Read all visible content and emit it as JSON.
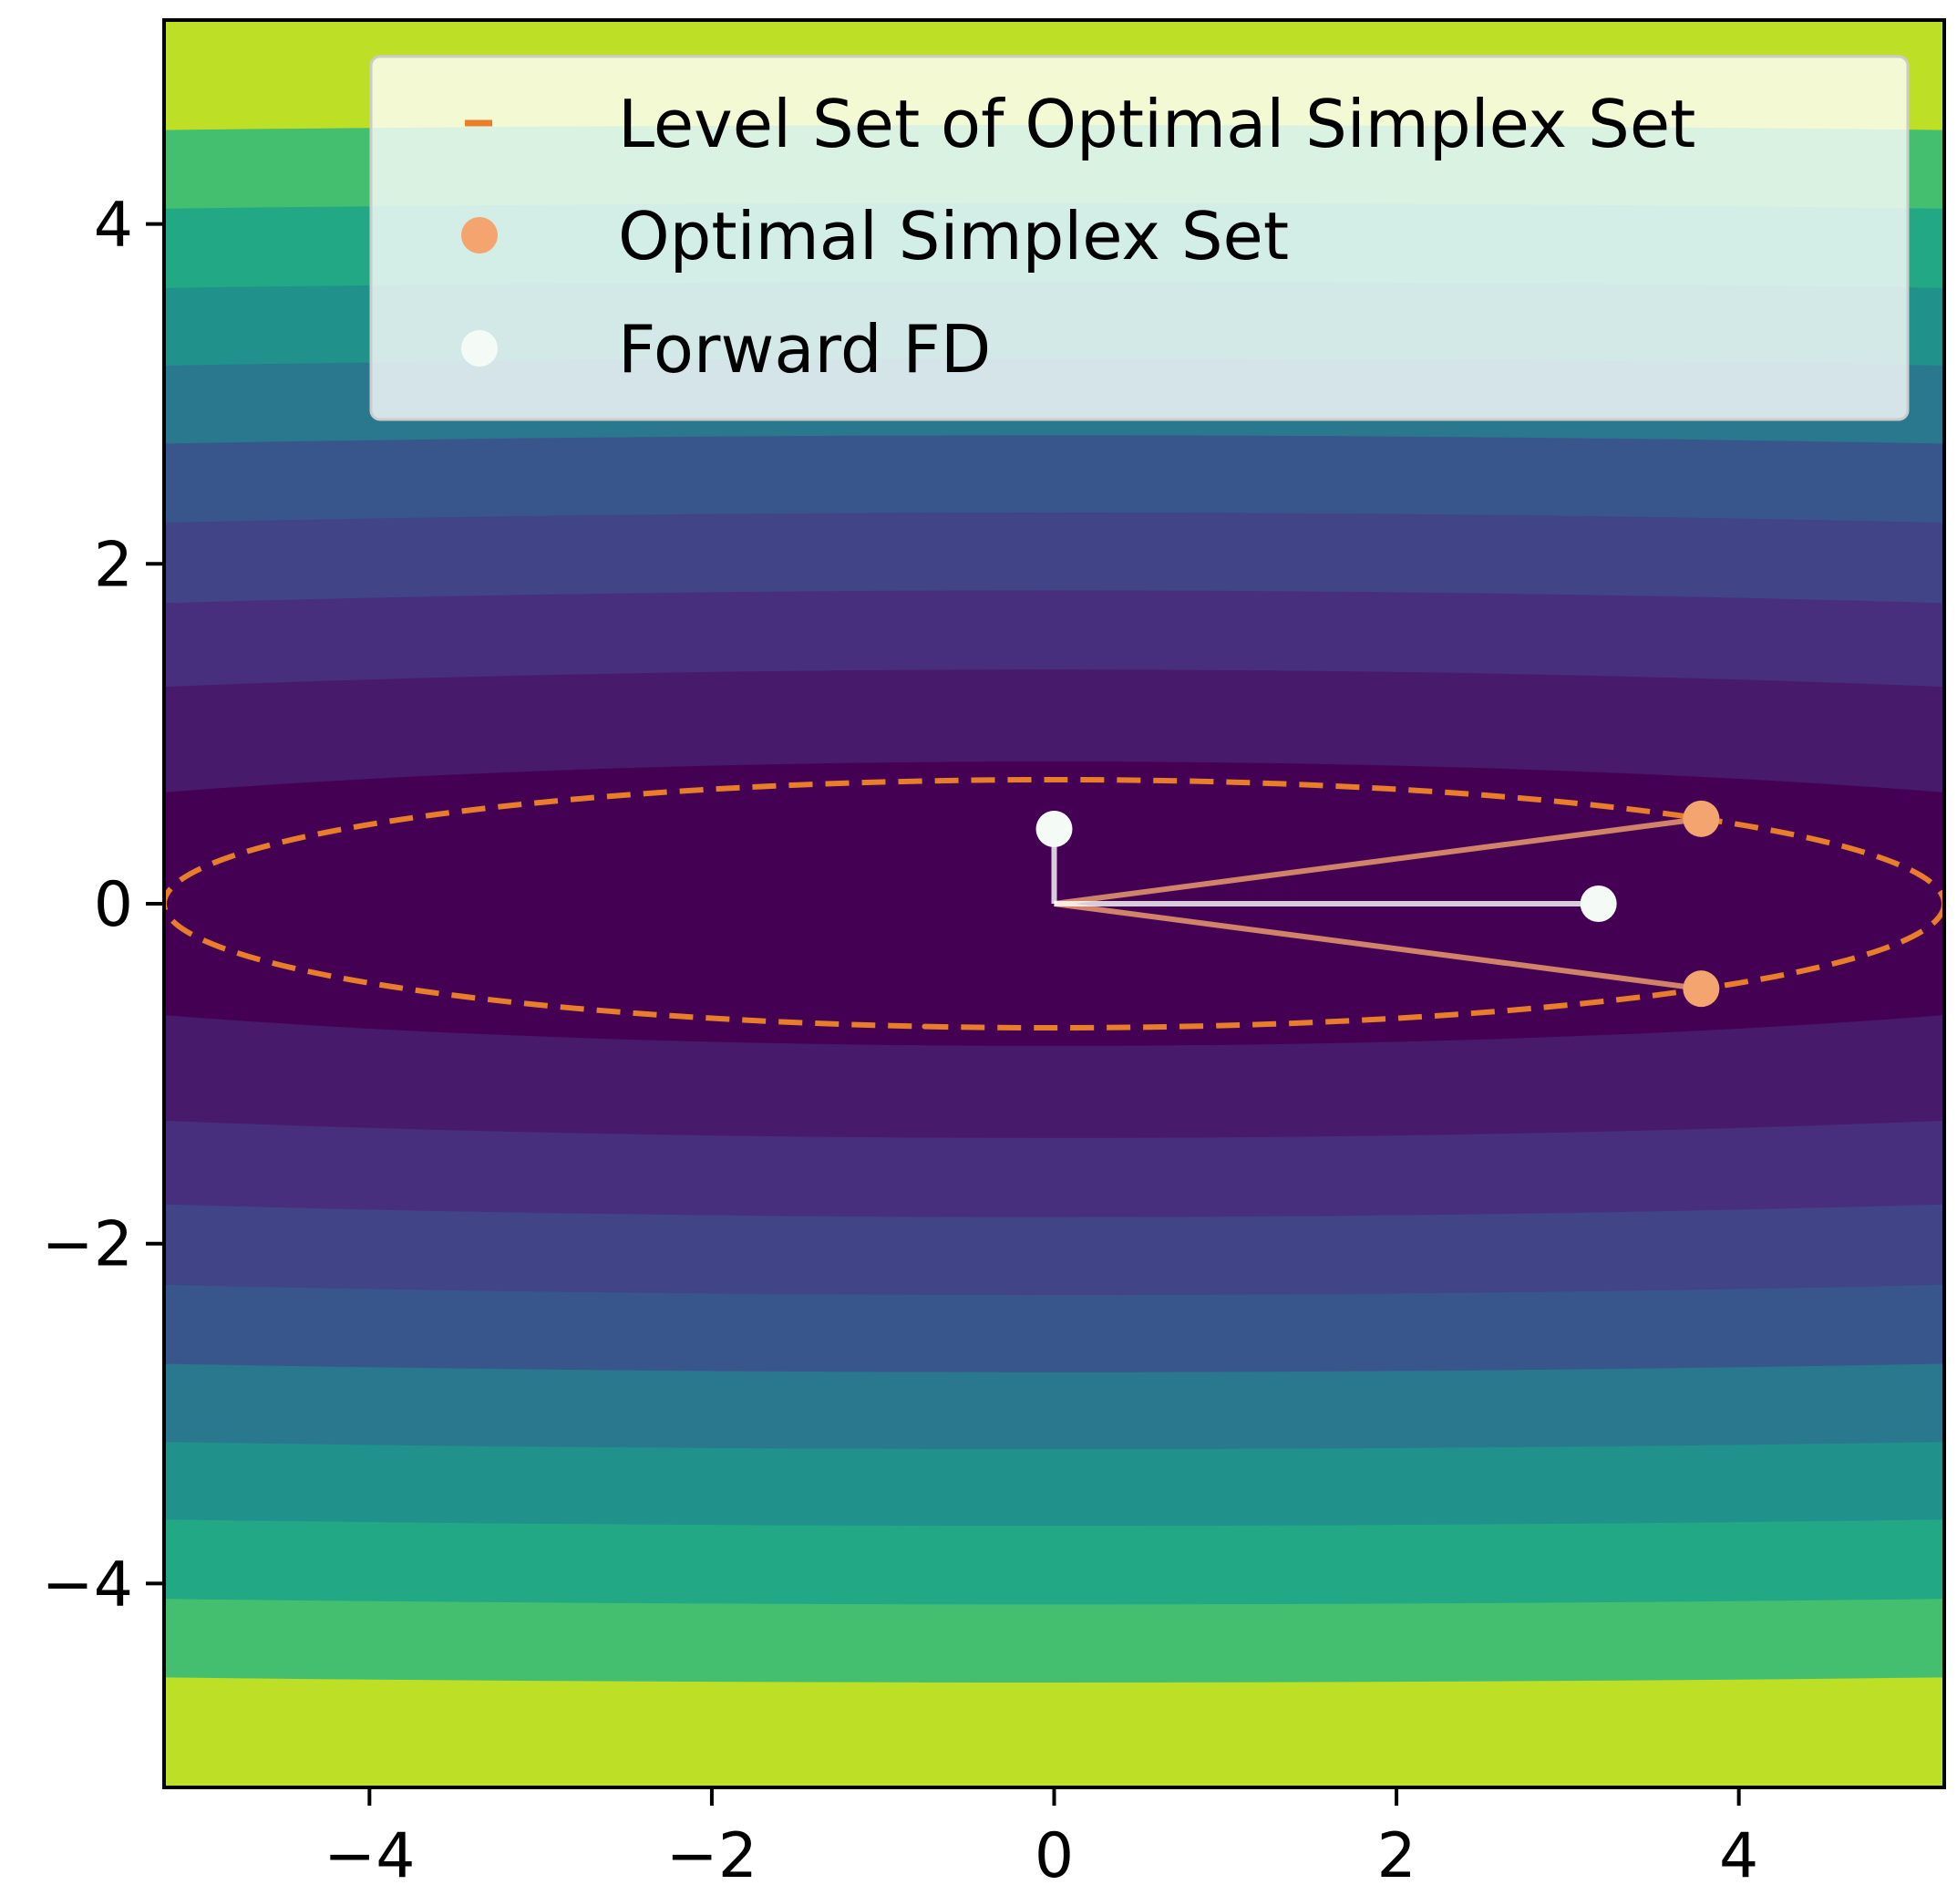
{
  "chart_data": {
    "type": "contour",
    "title": "",
    "xlabel": "",
    "ylabel": "",
    "xlim": [
      -5.2,
      5.2
    ],
    "ylim": [
      -5.2,
      5.2
    ],
    "xticks": [
      -4,
      -2,
      0,
      2,
      4
    ],
    "yticks": [
      -4,
      -2,
      0,
      2,
      4
    ],
    "xtick_labels": [
      "−4",
      "−2",
      "0",
      "2",
      "4"
    ],
    "ytick_labels": [
      "−4",
      "−2",
      "0",
      "2",
      "4"
    ],
    "grid": false,
    "legend_position": "top-right",
    "contour": {
      "colormap": "viridis",
      "function": "0.01*x^2 + y^2",
      "levels": [
        0,
        0.7,
        1.9,
        3.4,
        5.3,
        7.6,
        10.3,
        13.4,
        17.0,
        21.0,
        27.1
      ],
      "colors": [
        "#440154",
        "#481a6c",
        "#472f7d",
        "#414487",
        "#39568c",
        "#2a788e",
        "#21918c",
        "#22a884",
        "#44bf70",
        "#bddf26"
      ]
    },
    "series": [
      {
        "name": "Level Set of Optimal Simplex Set",
        "kind": "dashed-ellipse",
        "color": "#e87d2a",
        "center": [
          0,
          0
        ],
        "semi_axis_x": 5.2,
        "semi_axis_y": 0.73
      },
      {
        "name": "Optimal Simplex Set",
        "kind": "scatter",
        "color": "#f4a46e",
        "points": [
          [
            3.78,
            0.5
          ],
          [
            3.78,
            -0.5
          ]
        ]
      },
      {
        "name": "Forward FD",
        "kind": "scatter",
        "color": "#f4fbf7",
        "points": [
          [
            0.0,
            0.44
          ],
          [
            3.18,
            0.0
          ]
        ]
      }
    ],
    "connectors": [
      {
        "from": [
          0,
          0
        ],
        "to": [
          3.78,
          0.5
        ],
        "color": "#f4a46e"
      },
      {
        "from": [
          0,
          0
        ],
        "to": [
          3.78,
          -0.5
        ],
        "color": "#f4a46e"
      },
      {
        "from": [
          0,
          0
        ],
        "to": [
          0.0,
          0.44
        ],
        "color": "#ffffff"
      },
      {
        "from": [
          0,
          0
        ],
        "to": [
          3.18,
          0.0
        ],
        "color": "#ffffff"
      }
    ]
  }
}
